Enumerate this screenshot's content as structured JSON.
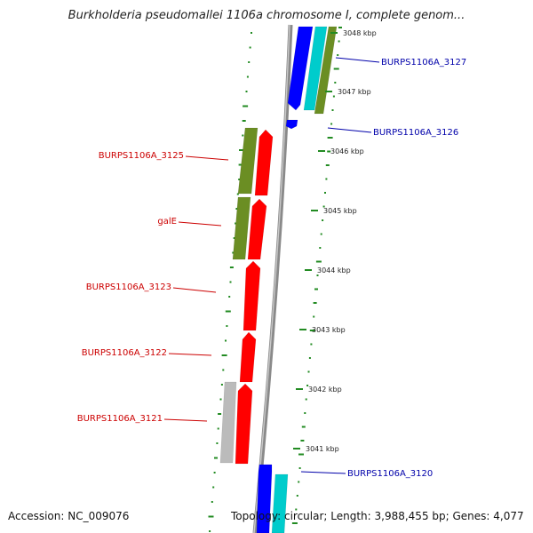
{
  "title": "Burkholderia pseudomallei 1106a chromosome I, complete genom...",
  "footer": {
    "accession": "Accession: NC_009076",
    "topology": "Topology: circular; Length: 3,988,455 bp; Genes: 4,077"
  },
  "scale_labels": [
    "3048 kbp",
    "3047 kbp",
    "3046 kbp",
    "3045 kbp",
    "3044 kbp",
    "3043 kbp",
    "3042 kbp",
    "3041 kbp"
  ],
  "gene_labels": {
    "right": [
      "BURPS1106A_3127",
      "BURPS1106A_3126",
      "BURPS1106A_3120"
    ],
    "left": [
      "BURPS1106A_3125",
      "galE",
      "BURPS1106A_3123",
      "BURPS1106A_3122",
      "BURPS1106A_3121"
    ]
  },
  "colors": {
    "forward_cds": "#0000ff",
    "forward_feature": "#00cccc",
    "reverse_cds": "#ff0000",
    "reverse_feature": "#6b8e23",
    "other_feature": "#bbbbbb",
    "backbone": "#888888",
    "gc_dots": "#228b22",
    "right_label": "#0000aa",
    "left_label": "#cc0000"
  }
}
